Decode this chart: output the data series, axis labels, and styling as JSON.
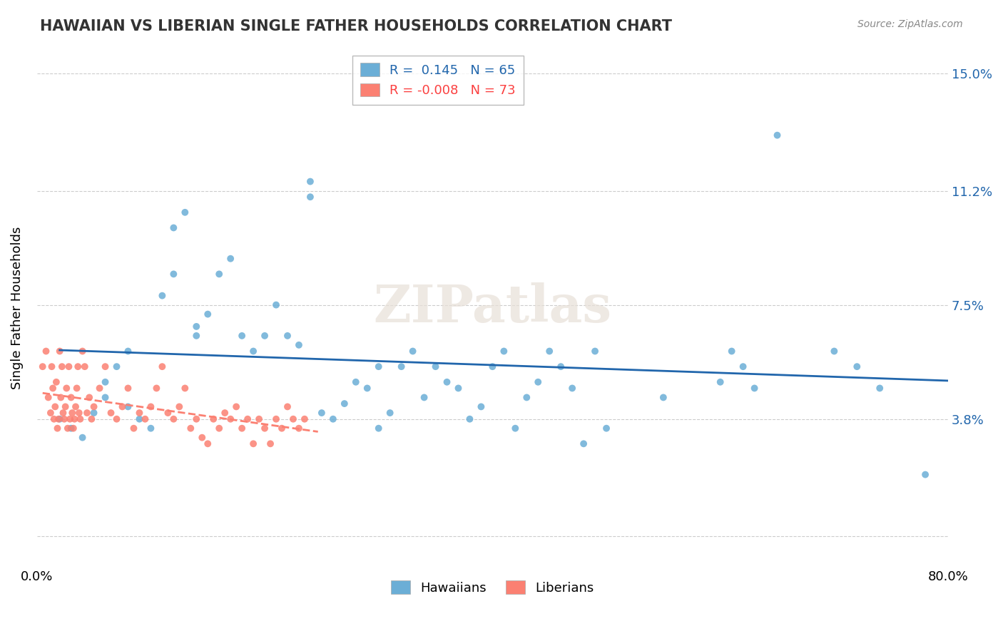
{
  "title": "HAWAIIAN VS LIBERIAN SINGLE FATHER HOUSEHOLDS CORRELATION CHART",
  "source": "Source: ZipAtlas.com",
  "xlabel": "",
  "ylabel": "Single Father Households",
  "xlim": [
    0.0,
    0.8
  ],
  "ylim": [
    -0.01,
    0.158
  ],
  "xtick_labels": [
    "0.0%",
    "80.0%"
  ],
  "ytick_positions": [
    0.0,
    0.038,
    0.075,
    0.112,
    0.15
  ],
  "ytick_labels": [
    "",
    "3.8%",
    "7.5%",
    "11.2%",
    "15.0%"
  ],
  "hawaiian_R": 0.145,
  "hawaiian_N": 65,
  "liberian_R": -0.008,
  "liberian_N": 73,
  "hawaiian_color": "#6baed6",
  "liberian_color": "#fb8072",
  "hawaiian_line_color": "#2166ac",
  "liberian_line_color": "#fb8072",
  "watermark": "ZIPatlas",
  "hawaiian_x": [
    0.02,
    0.03,
    0.04,
    0.05,
    0.06,
    0.06,
    0.07,
    0.08,
    0.08,
    0.09,
    0.1,
    0.11,
    0.12,
    0.12,
    0.13,
    0.14,
    0.14,
    0.15,
    0.16,
    0.17,
    0.18,
    0.19,
    0.2,
    0.21,
    0.22,
    0.23,
    0.24,
    0.24,
    0.25,
    0.26,
    0.27,
    0.28,
    0.29,
    0.3,
    0.3,
    0.31,
    0.32,
    0.33,
    0.34,
    0.35,
    0.36,
    0.37,
    0.38,
    0.39,
    0.4,
    0.41,
    0.42,
    0.43,
    0.44,
    0.45,
    0.46,
    0.47,
    0.48,
    0.49,
    0.5,
    0.55,
    0.6,
    0.61,
    0.62,
    0.63,
    0.65,
    0.7,
    0.72,
    0.74,
    0.78
  ],
  "hawaiian_y": [
    0.038,
    0.035,
    0.032,
    0.04,
    0.045,
    0.05,
    0.055,
    0.06,
    0.042,
    0.038,
    0.035,
    0.078,
    0.085,
    0.1,
    0.105,
    0.065,
    0.068,
    0.072,
    0.085,
    0.09,
    0.065,
    0.06,
    0.065,
    0.075,
    0.065,
    0.062,
    0.115,
    0.11,
    0.04,
    0.038,
    0.043,
    0.05,
    0.048,
    0.055,
    0.035,
    0.04,
    0.055,
    0.06,
    0.045,
    0.055,
    0.05,
    0.048,
    0.038,
    0.042,
    0.055,
    0.06,
    0.035,
    0.045,
    0.05,
    0.06,
    0.055,
    0.048,
    0.03,
    0.06,
    0.035,
    0.045,
    0.05,
    0.06,
    0.055,
    0.048,
    0.13,
    0.06,
    0.055,
    0.048,
    0.02
  ],
  "liberian_x": [
    0.005,
    0.008,
    0.01,
    0.012,
    0.013,
    0.014,
    0.015,
    0.016,
    0.017,
    0.018,
    0.019,
    0.02,
    0.021,
    0.022,
    0.023,
    0.024,
    0.025,
    0.026,
    0.027,
    0.028,
    0.029,
    0.03,
    0.031,
    0.032,
    0.033,
    0.034,
    0.035,
    0.036,
    0.037,
    0.038,
    0.04,
    0.042,
    0.044,
    0.046,
    0.048,
    0.05,
    0.055,
    0.06,
    0.065,
    0.07,
    0.075,
    0.08,
    0.085,
    0.09,
    0.095,
    0.1,
    0.105,
    0.11,
    0.115,
    0.12,
    0.125,
    0.13,
    0.135,
    0.14,
    0.145,
    0.15,
    0.155,
    0.16,
    0.165,
    0.17,
    0.175,
    0.18,
    0.185,
    0.19,
    0.195,
    0.2,
    0.205,
    0.21,
    0.215,
    0.22,
    0.225,
    0.23,
    0.235
  ],
  "liberian_y": [
    0.055,
    0.06,
    0.045,
    0.04,
    0.055,
    0.048,
    0.038,
    0.042,
    0.05,
    0.035,
    0.038,
    0.06,
    0.045,
    0.055,
    0.04,
    0.038,
    0.042,
    0.048,
    0.035,
    0.055,
    0.038,
    0.045,
    0.04,
    0.035,
    0.038,
    0.042,
    0.048,
    0.055,
    0.04,
    0.038,
    0.06,
    0.055,
    0.04,
    0.045,
    0.038,
    0.042,
    0.048,
    0.055,
    0.04,
    0.038,
    0.042,
    0.048,
    0.035,
    0.04,
    0.038,
    0.042,
    0.048,
    0.055,
    0.04,
    0.038,
    0.042,
    0.048,
    0.035,
    0.038,
    0.032,
    0.03,
    0.038,
    0.035,
    0.04,
    0.038,
    0.042,
    0.035,
    0.038,
    0.03,
    0.038,
    0.035,
    0.03,
    0.038,
    0.035,
    0.042,
    0.038,
    0.035,
    0.038
  ]
}
